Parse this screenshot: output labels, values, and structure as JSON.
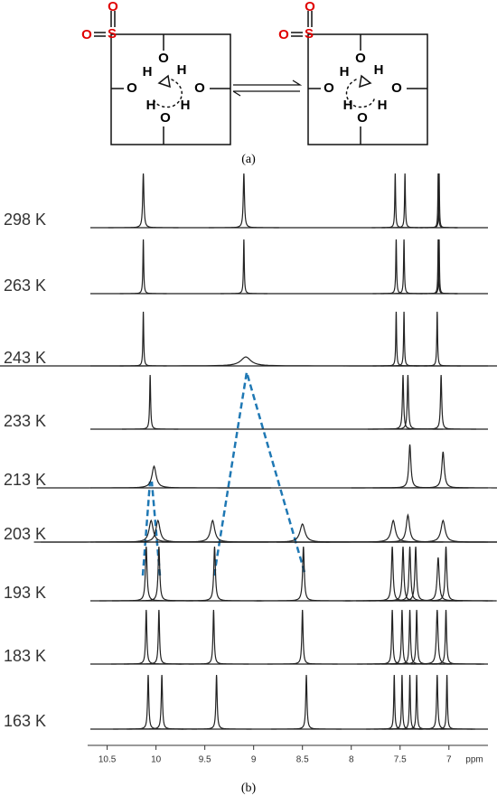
{
  "diagram": {
    "left": [
      "O",
      "O",
      "S",
      "O",
      "H",
      "H",
      "O",
      "O",
      "H",
      "H",
      "O"
    ],
    "right": [
      "O",
      "O",
      "S",
      "O",
      "H",
      "H",
      "O",
      "O",
      "H",
      "H",
      "O"
    ],
    "caption": "(a)"
  },
  "chart_data": {
    "type": "spectra",
    "caption": "(b)",
    "x_label": "ppm",
    "xlim": [
      10.7,
      6.6
    ],
    "xticks": [
      10.5,
      10.0,
      9.5,
      9.0,
      8.5,
      8.0,
      7.5,
      7.0
    ],
    "color": "#222222",
    "series": [
      {
        "name": "298 K",
        "peaks": [
          10.13,
          9.1,
          7.55,
          7.45,
          7.11,
          7.1
        ],
        "widths": [
          0.015,
          0.015,
          0.01,
          0.01,
          0.008,
          0.008
        ]
      },
      {
        "name": "263 K",
        "peaks": [
          10.13,
          9.1,
          7.54,
          7.46,
          7.11,
          7.1
        ],
        "widths": [
          0.01,
          0.01,
          0.01,
          0.01,
          0.008,
          0.008
        ]
      },
      {
        "name": "243 K",
        "peaks": [
          10.13,
          9.08,
          7.54,
          7.46,
          7.12
        ],
        "widths": [
          0.01,
          0.12,
          0.01,
          0.01,
          0.01
        ]
      },
      {
        "name": "233 K",
        "peaks": [
          10.06,
          7.47,
          7.42,
          7.08
        ],
        "widths": [
          0.012,
          0.015,
          0.015,
          0.015
        ]
      },
      {
        "name": "213 K",
        "peaks": [
          10.02,
          7.4,
          7.06
        ],
        "widths": [
          0.05,
          0.025,
          0.03
        ]
      },
      {
        "name": "203 K",
        "peaks": [
          10.05,
          9.98,
          9.42,
          8.5,
          7.57,
          7.42,
          7.06
        ],
        "widths": [
          0.05,
          0.05,
          0.05,
          0.06,
          0.05,
          0.04,
          0.05
        ]
      },
      {
        "name": "193 K",
        "peaks": [
          10.1,
          9.97,
          9.4,
          8.49,
          7.58,
          7.47,
          7.4,
          7.34,
          7.11,
          7.03
        ],
        "widths": [
          0.02,
          0.02,
          0.02,
          0.02,
          0.02,
          0.02,
          0.02,
          0.02,
          0.025,
          0.02
        ]
      },
      {
        "name": "183 K",
        "peaks": [
          10.1,
          9.97,
          9.41,
          8.5,
          7.58,
          7.48,
          7.4,
          7.33,
          7.12,
          7.03
        ],
        "widths": [
          0.015,
          0.015,
          0.015,
          0.015,
          0.015,
          0.015,
          0.015,
          0.015,
          0.02,
          0.015
        ]
      },
      {
        "name": "163 K",
        "peaks": [
          10.08,
          9.94,
          9.38,
          8.46,
          7.56,
          7.48,
          7.4,
          7.33,
          7.12,
          7.02
        ],
        "widths": [
          0.015,
          0.015,
          0.015,
          0.015,
          0.012,
          0.012,
          0.012,
          0.012,
          0.015,
          0.012
        ]
      }
    ]
  }
}
